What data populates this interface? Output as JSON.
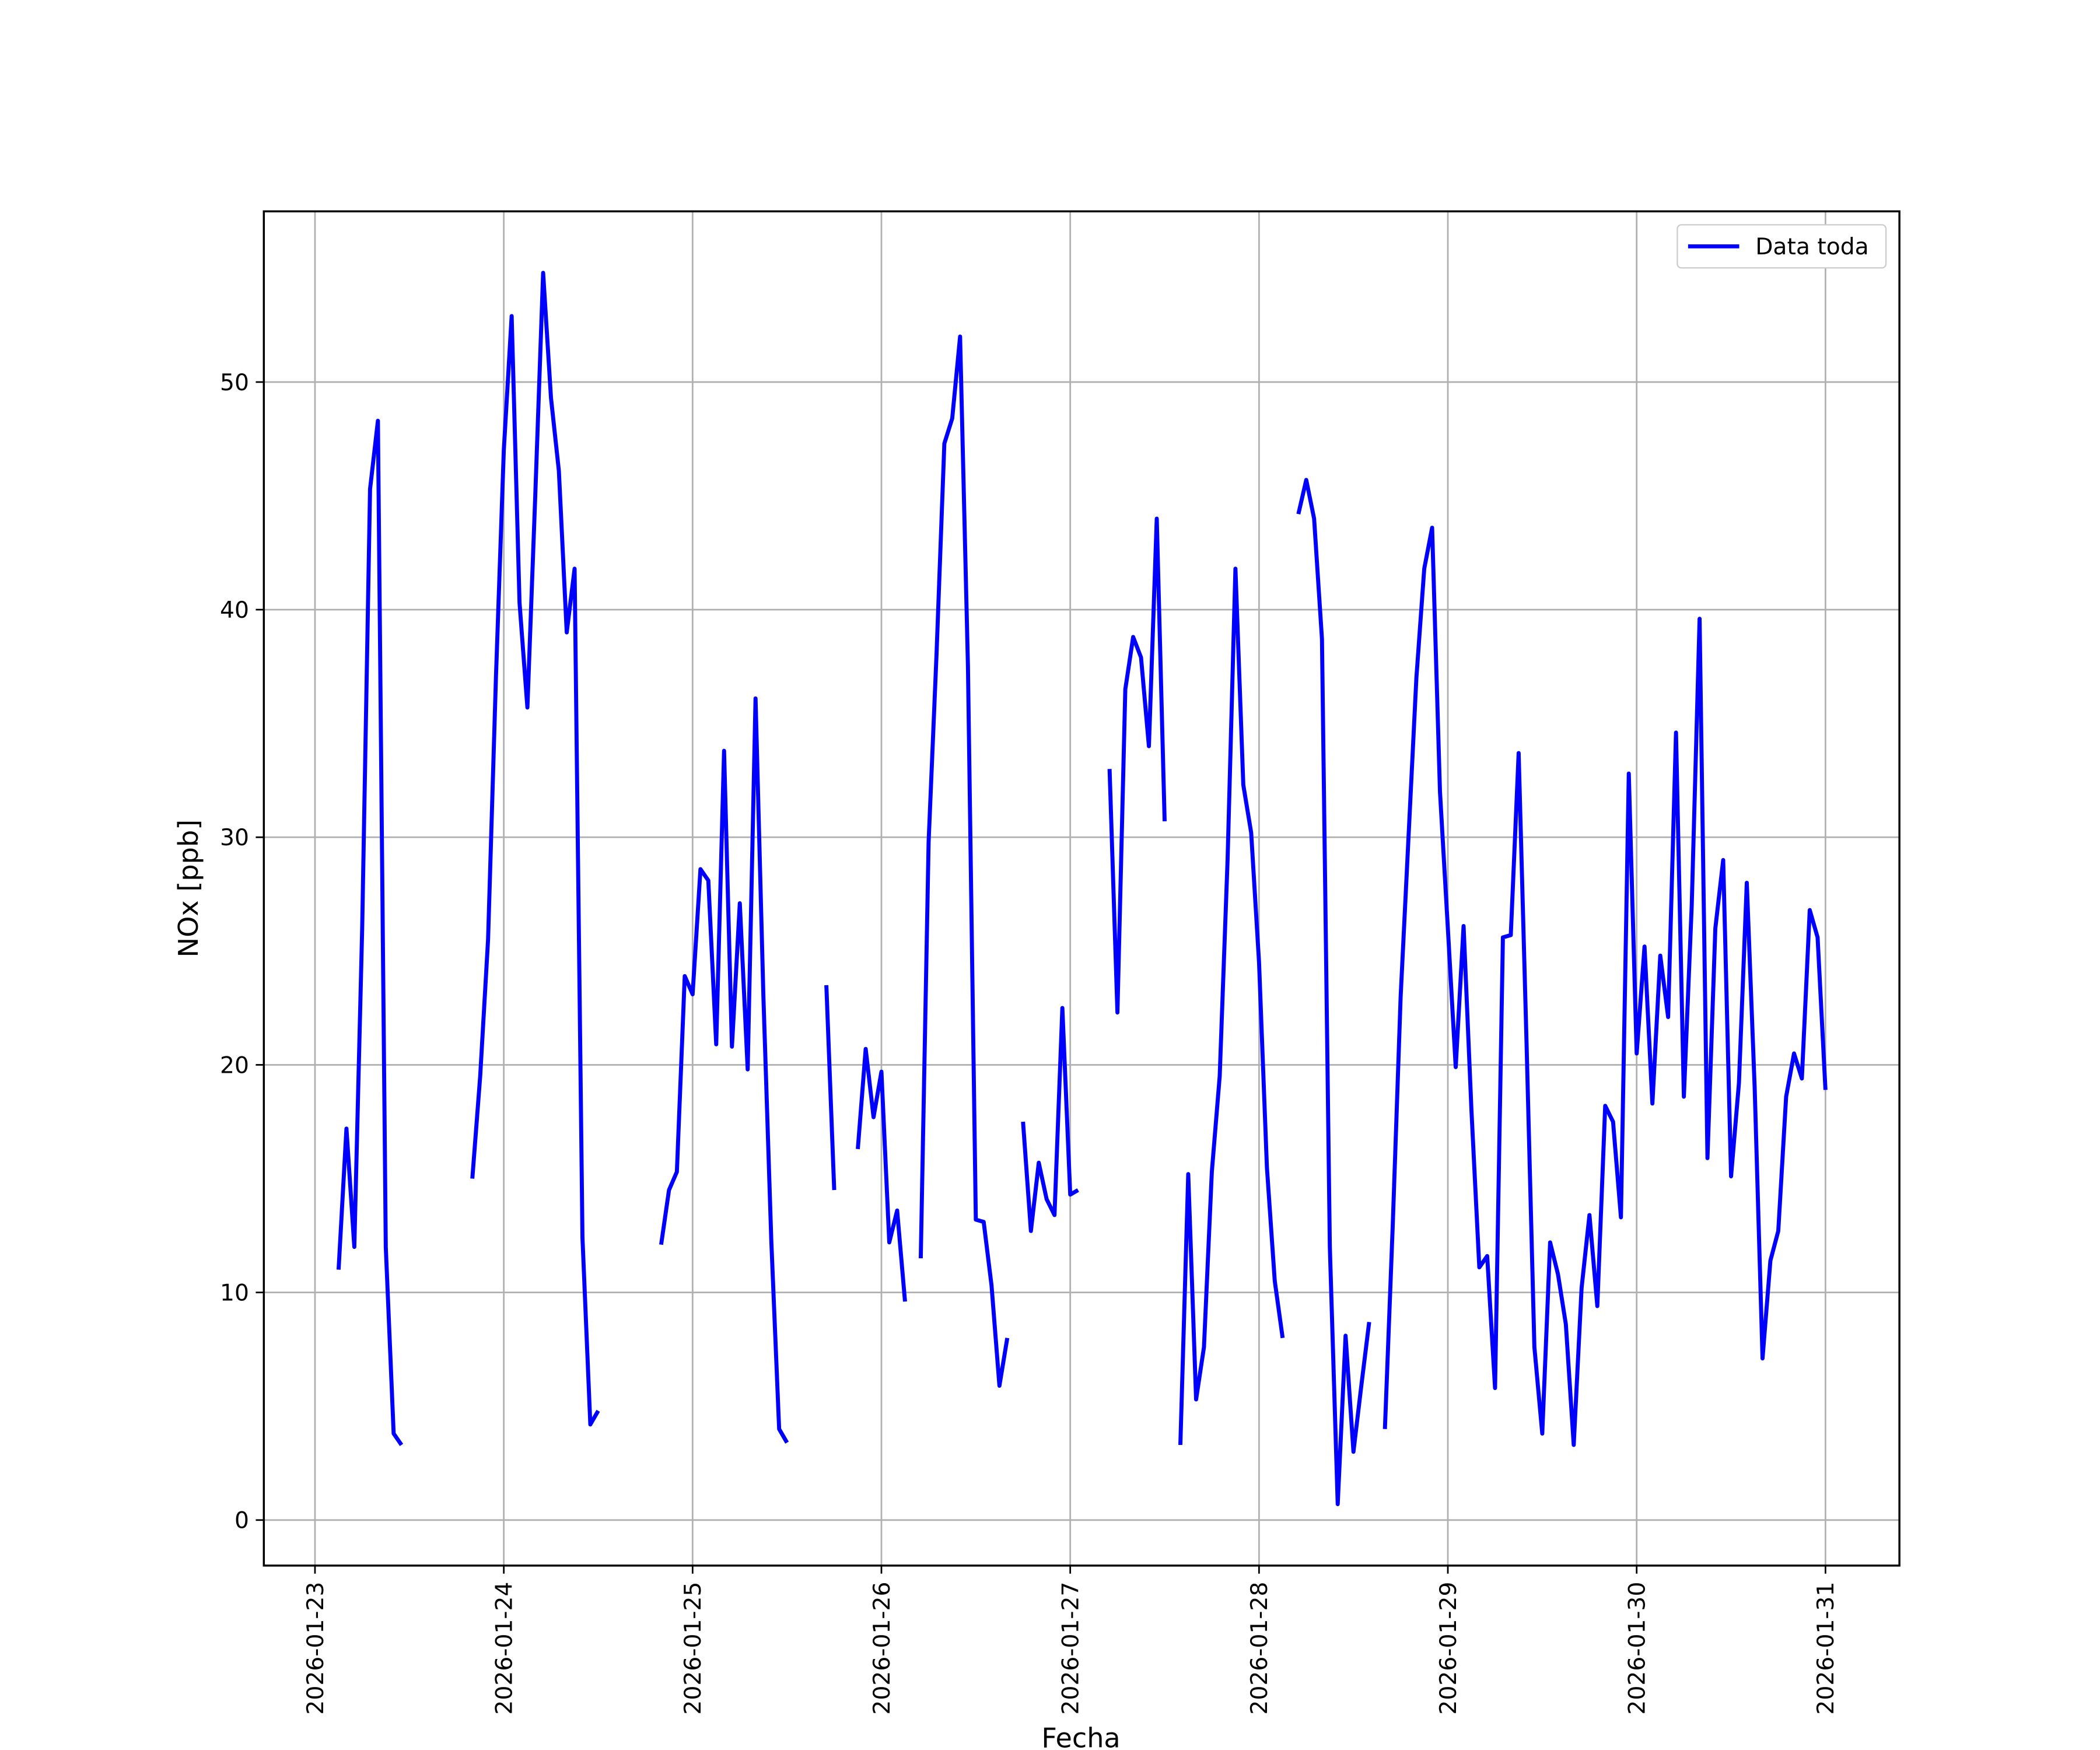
{
  "chart_data": {
    "type": "line",
    "xlabel": "Fecha",
    "ylabel": "NOx [ppb]",
    "x": [
      3,
      4,
      5,
      6,
      7,
      8,
      9,
      10,
      11,
      15,
      20,
      21,
      22,
      23,
      24,
      25,
      26,
      27,
      28,
      29,
      30,
      31,
      32,
      33,
      34,
      35,
      36,
      40,
      44,
      45,
      46,
      47,
      48,
      49,
      50,
      51,
      52,
      53,
      54,
      55,
      56,
      57,
      58,
      59,
      60,
      62,
      65,
      66,
      67,
      69,
      70,
      71,
      72,
      73,
      74,
      75,
      76,
      77,
      78,
      79,
      80,
      81,
      82,
      83,
      84,
      85,
      86,
      87,
      88,
      89,
      90,
      91,
      92,
      93,
      94,
      95,
      96,
      97,
      99,
      101,
      102,
      103,
      104,
      105,
      106,
      107,
      108,
      109,
      110,
      111,
      112,
      113,
      114,
      115,
      116,
      117,
      118,
      119,
      120,
      121,
      122,
      123,
      124,
      125,
      126,
      127,
      128,
      129,
      130,
      131,
      132,
      133,
      134,
      135,
      136,
      137,
      138,
      139,
      140,
      141,
      142,
      143,
      144,
      145,
      146,
      147,
      148,
      149,
      150,
      151,
      152,
      153,
      154,
      155,
      156,
      157,
      158,
      159,
      160,
      161,
      162,
      163,
      164,
      165,
      166,
      167,
      168,
      169,
      170,
      171,
      172,
      173,
      174,
      175,
      176,
      177,
      178,
      179,
      180,
      181,
      182,
      183,
      184,
      185,
      186,
      187,
      188,
      189,
      190,
      191,
      192
    ],
    "series": [
      {
        "name": "Data toda",
        "color": "#0000ff",
        "values": [
          11.0,
          17.2,
          12.0,
          26,
          45.3,
          48.3,
          12.0,
          3.8,
          3.3,
          null,
          15.0,
          19.5,
          25.5,
          37,
          47,
          52.9,
          40.3,
          35.7,
          45,
          54.8,
          49.3,
          46.1,
          39.0,
          41.8,
          12.4,
          4.2,
          4.8,
          null,
          12.1,
          14.5,
          15.3,
          23.9,
          23.1,
          28.6,
          28.1,
          20.9,
          33.8,
          20.8,
          27.1,
          19.8,
          36.1,
          23,
          12.3,
          4.0,
          3.4,
          null,
          23.5,
          14.5,
          null,
          16.3,
          20.7,
          17.7,
          19.7,
          12.2,
          13.6,
          9.6,
          null,
          11.5,
          29.8,
          38,
          47.3,
          48.4,
          52.0,
          37.5,
          13.2,
          13.1,
          10.3,
          5.9,
          8.0,
          null,
          17.5,
          12.7,
          15.7,
          14.1,
          13.4,
          22.5,
          14.3,
          14.5,
          null,
          33.0,
          22.3,
          36.5,
          38.8,
          37.9,
          34.0,
          44.0,
          30.7,
          null,
          3.3,
          15.2,
          5.3,
          7.6,
          15.3,
          19.5,
          29,
          41.8,
          32.3,
          30.2,
          24.5,
          15.5,
          10.5,
          8.0,
          null,
          44.2,
          45.7,
          44.0,
          38.7,
          12.0,
          0.7,
          8.1,
          3.0,
          5.9,
          8.7,
          null,
          4.0,
          13,
          23,
          30,
          37,
          41.8,
          43.6,
          32.0,
          26,
          19.9,
          26.1,
          18,
          11.1,
          11.6,
          5.8,
          25.6,
          25.7,
          33.7,
          21,
          7.6,
          3.8,
          12.2,
          10.8,
          8.6,
          3.3,
          10.2,
          13.4,
          9.4,
          18.2,
          17.5,
          13.3,
          32.8,
          20.5,
          25.2,
          18.3,
          24.8,
          22.1,
          34.6,
          18.6,
          27,
          39.6,
          15.9,
          26,
          29.0,
          15.1,
          19.2,
          28.0,
          19,
          7.1,
          11.4,
          12.7,
          18.6,
          20.5,
          19.4,
          26.8,
          25.6,
          18.9
        ]
      }
    ],
    "xlim": [
      -6.5,
      201.4
    ],
    "ylim": [
      -2.0,
      57.5
    ],
    "xticks": [
      {
        "value": 0,
        "label": "2026-01-23"
      },
      {
        "value": 24,
        "label": "2026-01-24"
      },
      {
        "value": 48,
        "label": "2026-01-25"
      },
      {
        "value": 72,
        "label": "2026-01-26"
      },
      {
        "value": 96,
        "label": "2026-01-27"
      },
      {
        "value": 120,
        "label": "2026-01-28"
      },
      {
        "value": 144,
        "label": "2026-01-29"
      },
      {
        "value": 168,
        "label": "2026-01-30"
      },
      {
        "value": 192,
        "label": "2026-01-31"
      }
    ],
    "yticks": [
      0,
      10,
      20,
      30,
      40,
      50
    ],
    "grid": true,
    "legend": "upper right"
  }
}
